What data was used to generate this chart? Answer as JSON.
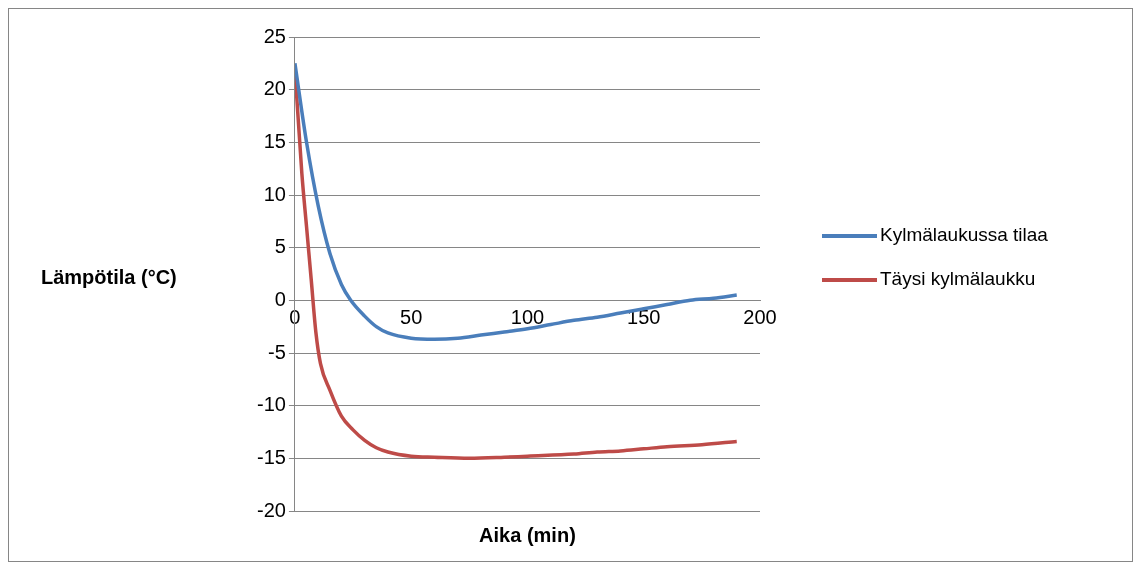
{
  "chart_data": {
    "type": "line",
    "xlabel": "Aika (min)",
    "ylabel": "Lämpötila (°C)",
    "xlim": [
      0,
      200
    ],
    "xticks": [
      0,
      50,
      100,
      150,
      200
    ],
    "ylim": [
      -20,
      25
    ],
    "yticks": [
      -20,
      -15,
      -10,
      -5,
      0,
      5,
      10,
      15,
      20,
      25
    ],
    "grid": "y",
    "legend": "right",
    "marker": "none",
    "line_style": "solid",
    "series": [
      {
        "name": "Kylmälaukussa tilaa",
        "color": "#4a7ebb",
        "x": [
          0,
          5,
          10,
          15,
          20,
          24,
          30,
          35,
          40,
          50,
          60,
          70,
          80,
          90,
          100,
          110,
          120,
          130,
          140,
          150,
          160,
          170,
          180,
          190
        ],
        "values": [
          22.5,
          15,
          9,
          4.5,
          1.5,
          0,
          -1.5,
          -2.5,
          -3.1,
          -3.6,
          -3.7,
          -3.6,
          -3.3,
          -3.0,
          -2.7,
          -2.3,
          -1.9,
          -1.6,
          -1.2,
          -0.8,
          -0.4,
          0,
          0.2,
          0.5
        ]
      },
      {
        "name": "Täysi kylmälaukku",
        "color": "#be4b48",
        "x": [
          0,
          3,
          5,
          7,
          9,
          11,
          15,
          20,
          25,
          30,
          35,
          40,
          50,
          60,
          75,
          90,
          100,
          120,
          130,
          140,
          150,
          160,
          175,
          190
        ],
        "values": [
          22,
          12,
          7,
          2,
          -3,
          -6,
          -8.5,
          -11,
          -12.3,
          -13.3,
          -14,
          -14.4,
          -14.8,
          -14.9,
          -15,
          -14.9,
          -14.8,
          -14.6,
          -14.4,
          -14.3,
          -14.1,
          -13.9,
          -13.7,
          -13.4
        ]
      }
    ]
  }
}
